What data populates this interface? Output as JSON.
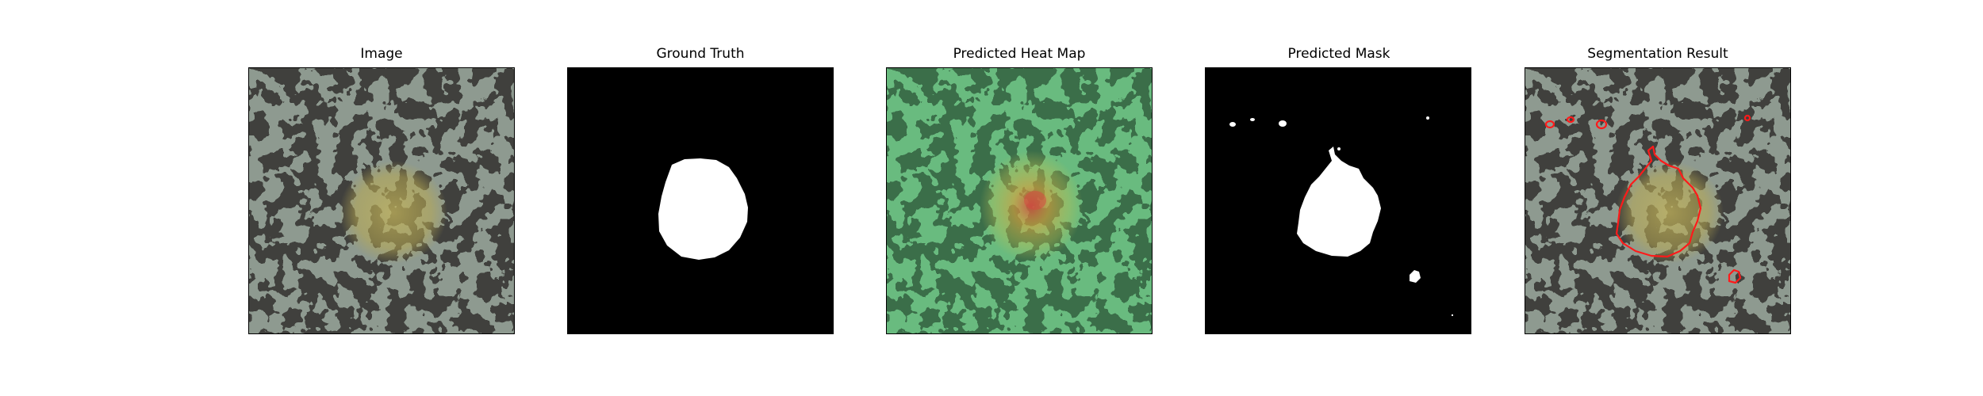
{
  "panels": [
    {
      "title": "Image"
    },
    {
      "title": "Ground Truth"
    },
    {
      "title": "Predicted Heat Map"
    },
    {
      "title": "Predicted Mask"
    },
    {
      "title": "Segmentation Result"
    }
  ],
  "colors": {
    "texture_light": "#8e9a90",
    "texture_dark": "#3f3f3c",
    "lesion_yellow": "#b9aa52",
    "heat_green": "#57b872",
    "heat_red": "#d34c3f",
    "contour_red": "#ff1a1a",
    "mask_white": "#ffffff",
    "mask_black": "#000000"
  }
}
